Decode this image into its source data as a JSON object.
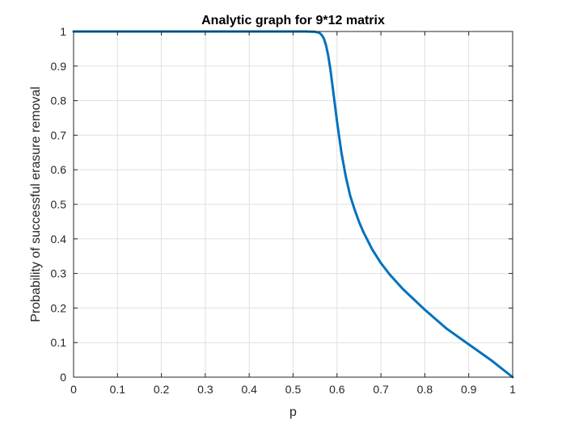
{
  "chart_data": {
    "type": "line",
    "title": "Analytic graph for 9*12 matrix",
    "xlabel": "p",
    "ylabel": "Probability of successful erasure removal",
    "xlim": [
      0,
      1
    ],
    "ylim": [
      0,
      1
    ],
    "xticks": [
      0,
      0.1,
      0.2,
      0.3,
      0.4,
      0.5,
      0.6,
      0.7,
      0.8,
      0.9,
      1
    ],
    "xtick_labels": [
      "0",
      "0.1",
      "0.2",
      "0.3",
      "0.4",
      "0.5",
      "0.6",
      "0.7",
      "0.8",
      "0.9",
      "1"
    ],
    "yticks": [
      0,
      0.1,
      0.2,
      0.3,
      0.4,
      0.5,
      0.6,
      0.7,
      0.8,
      0.9,
      1
    ],
    "ytick_labels": [
      "0",
      "0.1",
      "0.2",
      "0.3",
      "0.4",
      "0.5",
      "0.6",
      "0.7",
      "0.8",
      "0.9",
      "1"
    ],
    "grid": true,
    "series": [
      {
        "color": "#0072BD",
        "x": [
          0,
          0.05,
          0.1,
          0.15,
          0.2,
          0.25,
          0.3,
          0.35,
          0.4,
          0.45,
          0.5,
          0.53,
          0.55,
          0.56,
          0.565,
          0.57,
          0.575,
          0.58,
          0.585,
          0.59,
          0.595,
          0.6,
          0.61,
          0.62,
          0.63,
          0.64,
          0.65,
          0.66,
          0.67,
          0.68,
          0.7,
          0.72,
          0.75,
          0.8,
          0.85,
          0.9,
          0.95,
          1
        ],
        "y": [
          1,
          1,
          1,
          1,
          1,
          1,
          1,
          1,
          1,
          1,
          1,
          1,
          0.999,
          0.996,
          0.99,
          0.98,
          0.96,
          0.93,
          0.89,
          0.84,
          0.79,
          0.74,
          0.65,
          0.58,
          0.525,
          0.485,
          0.45,
          0.42,
          0.395,
          0.37,
          0.33,
          0.297,
          0.255,
          0.195,
          0.14,
          0.095,
          0.05,
          0
        ]
      }
    ]
  }
}
